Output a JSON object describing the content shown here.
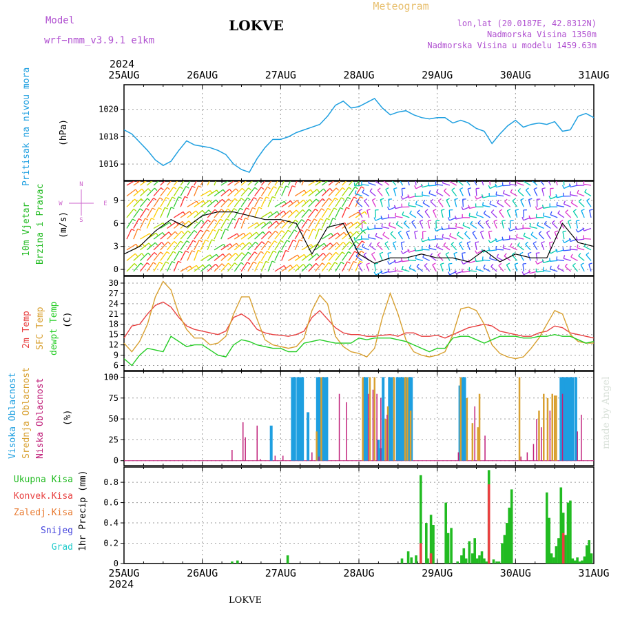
{
  "header": {
    "model_label": "Model",
    "model_name": "wrf−nmm_v3.9.1  e1km",
    "station": "LOKVE",
    "title": "Meteogram",
    "coords": "lon,lat (20.0187E, 42.8312N)",
    "altitude": "Nadmorska Visina 1350m",
    "model_altitude": "Nadmorska Visina u modelu 1459.63m",
    "year": "2024",
    "footer_station": "LOKVE",
    "credit": "made by Angel"
  },
  "colors": {
    "pressure": "#1e9fe0",
    "wind_label": "#22bb22",
    "temp2m": "#e84040",
    "sfc_temp": "#d8a030",
    "dewpt": "#22cc22",
    "high_cloud": "#1e9fe0",
    "mid_cloud": "#d8a030",
    "low_cloud": "#c0207a",
    "total_precip": "#22bb22",
    "conv_precip": "#e84040",
    "frz_precip": "#e87a30",
    "snow": "#4444dd",
    "graupel": "#22cccc",
    "compass": "#cc66cc"
  },
  "x_axis": {
    "ticks": [
      "25AUG",
      "26AUG",
      "27AUG",
      "28AUG",
      "29AUG",
      "30AUG",
      "31AUG"
    ]
  },
  "panels": {
    "pressure": {
      "label": "Pritisak na nivou mora",
      "unit": "(hPa)",
      "yticks": [
        "1016",
        "1018",
        "1020"
      ]
    },
    "wind": {
      "label1": "10m Vjetar",
      "label2": "Brzina i Pravac",
      "unit": "(m/s)",
      "yticks": [
        "0",
        "3",
        "6",
        "9"
      ],
      "compass": {
        "n": "N",
        "s": "S",
        "w": "W",
        "e": "E"
      }
    },
    "temp": {
      "label1": "2m Temp",
      "label2": "SFC Temp",
      "label3": "dewpt Temp",
      "unit": "(C)",
      "yticks": [
        "6",
        "9",
        "12",
        "15",
        "18",
        "21",
        "24",
        "27",
        "30"
      ]
    },
    "cloud": {
      "label1": "Visoka Oblacnost",
      "label2": "Srednja Oblacnost",
      "label3": "Niska Oblacnost",
      "unit": "(%)",
      "yticks": [
        "0",
        "25",
        "50",
        "75",
        "100"
      ]
    },
    "precip": {
      "unit": "1hr Precip (mm)",
      "legend": [
        "Ukupna Kisa",
        "Konvek.Kisa",
        "Zaledj.Kisa",
        "Snijeg",
        "Grad"
      ],
      "yticks": [
        "0",
        "0.2",
        "0.4",
        "0.6",
        "0.8"
      ]
    }
  },
  "chart_data": [
    {
      "type": "line",
      "title": "Pritisak na nivou mora",
      "ylabel": "(hPa)",
      "x_days": [
        0,
        0.1,
        0.2,
        0.3,
        0.4,
        0.5,
        0.6,
        0.7,
        0.8,
        0.9,
        1.0,
        1.1,
        1.2,
        1.3,
        1.4,
        1.5,
        1.6,
        1.7,
        1.8,
        1.9,
        2.0,
        2.1,
        2.2,
        2.3,
        2.4,
        2.5,
        2.6,
        2.7,
        2.8,
        2.9,
        3.0,
        3.1,
        3.2,
        3.3,
        3.4,
        3.5,
        3.6,
        3.7,
        3.8,
        3.9,
        4.0,
        4.1,
        4.2,
        4.3,
        4.4,
        4.5,
        4.6,
        4.7,
        4.8,
        4.9,
        5.0,
        5.1,
        5.2,
        5.3,
        5.4,
        5.5,
        5.6,
        5.7,
        5.8,
        5.9,
        6.0
      ],
      "values": [
        1018.5,
        1018.2,
        1017.6,
        1017.0,
        1016.3,
        1015.9,
        1016.2,
        1017.0,
        1017.7,
        1017.4,
        1017.3,
        1017.2,
        1017.0,
        1016.7,
        1016.0,
        1015.6,
        1015.4,
        1016.4,
        1017.2,
        1017.8,
        1017.8,
        1018.0,
        1018.3,
        1018.5,
        1018.7,
        1018.9,
        1019.5,
        1020.3,
        1020.6,
        1020.1,
        1020.2,
        1020.5,
        1020.8,
        1020.1,
        1019.6,
        1019.8,
        1019.9,
        1019.6,
        1019.4,
        1019.3,
        1019.4,
        1019.4,
        1019.0,
        1019.2,
        1019.0,
        1018.6,
        1018.4,
        1017.5,
        1018.2,
        1018.8,
        1019.2,
        1018.7,
        1018.9,
        1019.0,
        1018.9,
        1019.1,
        1018.4,
        1018.5,
        1019.5,
        1019.7,
        1019.4
      ],
      "ylim": [
        1014.8,
        1021.8
      ]
    },
    {
      "type": "line",
      "title": "2m Temp / SFC Temp / dewpt Temp",
      "ylabel": "(C)",
      "x_days": [
        0,
        0.1,
        0.2,
        0.3,
        0.4,
        0.5,
        0.6,
        0.7,
        0.8,
        0.9,
        1.0,
        1.1,
        1.2,
        1.3,
        1.4,
        1.5,
        1.6,
        1.7,
        1.8,
        1.9,
        2.0,
        2.1,
        2.2,
        2.3,
        2.4,
        2.5,
        2.6,
        2.7,
        2.8,
        2.9,
        3.0,
        3.1,
        3.2,
        3.3,
        3.4,
        3.5,
        3.6,
        3.7,
        3.8,
        3.9,
        4.0,
        4.1,
        4.2,
        4.3,
        4.4,
        4.5,
        4.6,
        4.7,
        4.8,
        4.9,
        5.0,
        5.1,
        5.2,
        5.3,
        5.4,
        5.5,
        5.6,
        5.7,
        5.8,
        5.9,
        6.0
      ],
      "series": [
        {
          "name": "2m Temp",
          "values": [
            14,
            17.5,
            18,
            21,
            23.5,
            24.5,
            23,
            20,
            17.5,
            16.5,
            16,
            15.5,
            15,
            16,
            20,
            21,
            19.5,
            16.5,
            15.5,
            15,
            14.8,
            14.5,
            15,
            16,
            20,
            22,
            19.5,
            17,
            15.5,
            15,
            15,
            14.5,
            14.5,
            14.8,
            15,
            14.5,
            15.5,
            15.5,
            14.5,
            14.5,
            14.8,
            14,
            15,
            16,
            17,
            17.5,
            18,
            17.5,
            16,
            15.5,
            15,
            14.5,
            14.5,
            15.5,
            16,
            17.5,
            17,
            15.5,
            15,
            14.5,
            14
          ]
        },
        {
          "name": "SFC Temp",
          "values": [
            12.5,
            10,
            13,
            18,
            26,
            30.5,
            28,
            21,
            16.5,
            14,
            14,
            12,
            12.5,
            14.5,
            21,
            26,
            26,
            19.5,
            13.5,
            12,
            11.5,
            11,
            11.5,
            14,
            22,
            26.5,
            24,
            14.5,
            11.5,
            10,
            9.5,
            8.5,
            11,
            20,
            27,
            21,
            13.5,
            10,
            9,
            8.5,
            9,
            10,
            15,
            22.5,
            23,
            22,
            18,
            12,
            9.5,
            8.5,
            8,
            8.5,
            11,
            14,
            18,
            22,
            21,
            15,
            13,
            12.5,
            12.5
          ]
        },
        {
          "name": "dewpt Temp",
          "values": [
            8,
            6,
            9,
            11,
            10.5,
            10,
            14.5,
            13,
            11.5,
            12,
            12,
            10.5,
            9,
            8.5,
            12,
            13.5,
            13,
            12,
            11.5,
            11,
            11,
            10,
            10,
            12.5,
            13,
            13.5,
            13,
            12.5,
            12.5,
            12.5,
            14,
            13.5,
            14,
            14,
            14,
            13.5,
            13,
            12,
            11,
            10,
            11,
            11,
            14,
            14.5,
            14.5,
            13.5,
            12.5,
            13.5,
            14.5,
            14.5,
            14.5,
            14,
            14,
            14.5,
            14.5,
            15,
            14.5,
            14.5,
            13.5,
            12.5,
            13
          ]
        }
      ],
      "ylim": [
        4.5,
        32
      ]
    },
    {
      "type": "line",
      "title": "10m Vjetar Brzina i Pravac",
      "ylabel": "(m/s)",
      "x_days": [
        0,
        0.2,
        0.4,
        0.6,
        0.8,
        1.0,
        1.2,
        1.4,
        1.6,
        1.8,
        2.0,
        2.2,
        2.4,
        2.6,
        2.8,
        3.0,
        3.2,
        3.4,
        3.6,
        3.8,
        4.0,
        4.2,
        4.4,
        4.6,
        4.8,
        5.0,
        5.2,
        5.4,
        5.6,
        5.8,
        6.0
      ],
      "values": [
        2,
        3,
        5,
        6.5,
        5.5,
        7,
        7.5,
        7.5,
        7,
        6.5,
        6.5,
        6,
        2,
        5.5,
        6,
        2,
        0.8,
        1.5,
        1.5,
        2,
        1.5,
        1.5,
        1,
        2.5,
        1,
        2,
        1.5,
        1.5,
        6,
        3.5,
        3
      ],
      "ylim": [
        -0.8,
        11.5
      ]
    },
    {
      "type": "bar",
      "title": "Visoka / Srednja / Niska Oblacnost",
      "ylabel": "(%)",
      "series": [
        {
          "name": "Visoka Oblacnost",
          "x_days": [
            1.88,
            2.15,
            2.18,
            2.22,
            2.25,
            2.28,
            2.35,
            2.47,
            2.5,
            2.53,
            2.56,
            2.59,
            3.07,
            3.1,
            3.25,
            3.28,
            3.31,
            3.39,
            3.42,
            3.49,
            3.52,
            3.55,
            3.58,
            3.61,
            3.64,
            3.67,
            4.29,
            4.32,
            4.35,
            5.58,
            5.61,
            5.64,
            5.67,
            5.7,
            5.73,
            5.77
          ],
          "values": [
            42,
            100,
            100,
            100,
            100,
            100,
            58,
            100,
            100,
            100,
            100,
            100,
            100,
            100,
            25,
            15,
            100,
            100,
            100,
            100,
            100,
            100,
            100,
            100,
            100,
            100,
            90,
            100,
            100,
            100,
            100,
            100,
            100,
            100,
            100,
            100
          ]
        },
        {
          "name": "Srednja Oblacnost",
          "x_days": [
            2.46,
            2.52,
            3.05,
            3.14,
            3.2,
            3.34,
            3.37,
            3.45,
            3.59,
            3.62,
            3.66,
            4.3,
            4.38,
            4.45,
            4.52,
            4.54,
            5.05,
            5.3,
            5.36,
            5.41,
            5.47,
            5.5,
            5.52
          ],
          "values": [
            35,
            100,
            100,
            100,
            100,
            50,
            65,
            100,
            100,
            100,
            60,
            100,
            75,
            45,
            40,
            80,
            100,
            60,
            80,
            75,
            80,
            78,
            78
          ]
        },
        {
          "name": "Niska Oblacnost",
          "x_days": [
            1.38,
            1.52,
            1.55,
            1.7,
            1.74,
            1.93,
            2.03,
            2.4,
            2.49,
            2.75,
            2.84,
            3.12,
            3.18,
            3.23,
            3.28,
            3.36,
            4.27,
            4.48,
            4.61,
            5.07,
            5.15,
            5.23,
            5.27,
            5.33,
            5.44,
            5.6,
            5.79,
            5.84
          ],
          "values": [
            13,
            46,
            28,
            42,
            2,
            6,
            6,
            10,
            5,
            80,
            70,
            80,
            85,
            80,
            75,
            55,
            10,
            65,
            30,
            5,
            10,
            20,
            50,
            40,
            60,
            80,
            35,
            55
          ]
        }
      ],
      "ylim": [
        -6,
        107
      ]
    },
    {
      "type": "bar",
      "title": "1hr Precip",
      "ylabel": "1hr Precip (mm)",
      "series": [
        {
          "name": "Ukupna Kisa",
          "x_days": [
            1.38,
            1.45,
            2.09,
            3.55,
            3.63,
            3.67,
            3.73,
            3.79,
            3.86,
            3.88,
            3.92,
            3.95,
            4.11,
            4.14,
            4.18,
            4.26,
            4.31,
            4.34,
            4.37,
            4.41,
            4.45,
            4.48,
            4.51,
            4.54,
            4.57,
            4.6,
            4.63,
            4.66,
            4.72,
            4.76,
            4.79,
            4.83,
            4.86,
            4.89,
            4.92,
            4.95,
            5.4,
            5.43,
            5.46,
            5.49,
            5.52,
            5.55,
            5.58,
            5.61,
            5.64,
            5.67,
            5.7,
            5.73,
            5.76,
            5.79,
            5.82,
            5.85,
            5.88,
            5.91,
            5.94,
            5.97
          ],
          "values": [
            0.02,
            0.03,
            0.08,
            0.05,
            0.12,
            0.06,
            0.08,
            0.87,
            0.4,
            0.05,
            0.48,
            0.38,
            0.6,
            0.3,
            0.35,
            0.02,
            0.08,
            0.15,
            0.05,
            0.22,
            0.1,
            0.25,
            0.05,
            0.08,
            0.12,
            0.05,
            0.02,
            0.92,
            0.04,
            0.02,
            0.02,
            0.2,
            0.28,
            0.4,
            0.55,
            0.73,
            0.7,
            0.45,
            0.1,
            0.06,
            0.17,
            0.25,
            0.75,
            0.5,
            0.28,
            0.6,
            0.62,
            0.05,
            0.03,
            0.06,
            0.02,
            0.03,
            0.07,
            0.18,
            0.23,
            0.1
          ]
        },
        {
          "name": "Konvek.Kisa",
          "x_days": [
            3.79,
            3.92,
            4.66,
            5.61
          ],
          "values": [
            0.2,
            0.1,
            0.78,
            0.3
          ]
        }
      ],
      "ylim": [
        0,
        0.95
      ]
    }
  ]
}
